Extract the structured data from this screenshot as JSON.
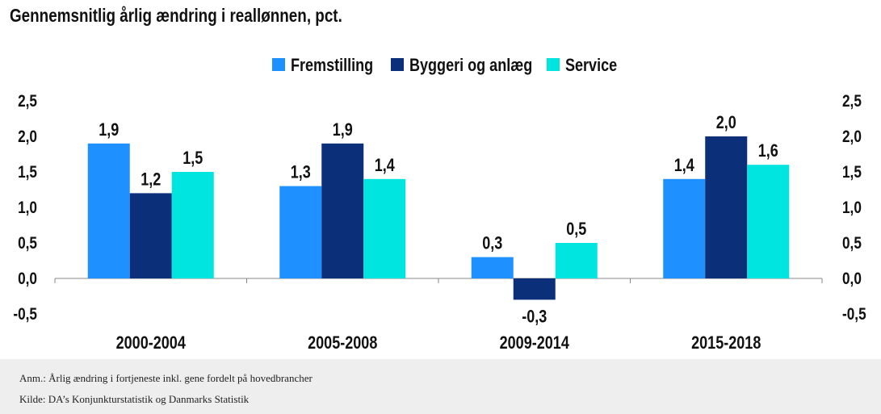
{
  "title": "Gennemsnitlig årlig ændring i reallønnen, pct.",
  "footer": {
    "note": "Anm.: Årlig ændring i fortjeneste inkl. gene fordelt på hovedbrancher",
    "source": "Kilde: DA’s Konjunkturstatistik og Danmarks Statistik"
  },
  "colors": {
    "Fremstilling": "#1e90ff",
    "Byggeri og anlæg": "#0c2f7a",
    "Service": "#00e5e0"
  },
  "chart_data": {
    "type": "bar",
    "categories": [
      "2000-2004",
      "2005-2008",
      "2009-2014",
      "2015-2018"
    ],
    "series": [
      {
        "name": "Fremstilling",
        "values": [
          1.9,
          1.3,
          0.3,
          1.4
        ],
        "labels": [
          "1,9",
          "1,3",
          "0,3",
          "1,4"
        ]
      },
      {
        "name": "Byggeri og anlæg",
        "values": [
          1.2,
          1.9,
          -0.3,
          2.0
        ],
        "labels": [
          "1,2",
          "1,9",
          "-0,3",
          "2,0"
        ]
      },
      {
        "name": "Service",
        "values": [
          1.5,
          1.4,
          0.5,
          1.6
        ],
        "labels": [
          "1,5",
          "1,4",
          "0,5",
          "1,6"
        ]
      }
    ],
    "ylim": [
      -0.5,
      2.5
    ],
    "yticks": [
      2.5,
      2.0,
      1.5,
      1.0,
      0.5,
      0.0,
      -0.5
    ],
    "ytick_labels": [
      "2,5",
      "2,0",
      "1,5",
      "1,0",
      "0,5",
      "0,0",
      "-0,5"
    ],
    "legend_position": "top-center",
    "grid": false,
    "secondary_y_axis": true
  }
}
